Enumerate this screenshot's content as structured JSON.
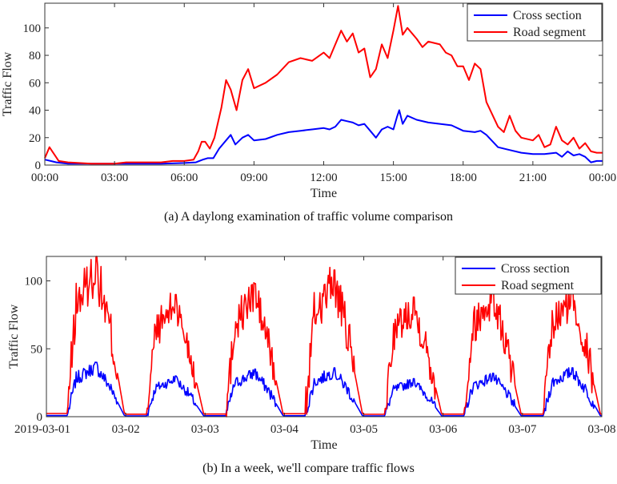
{
  "charts": [
    {
      "caption": "(a) A daylong examination of traffic volume comparison",
      "chart_data": {
        "type": "line",
        "xlabel": "Time",
        "ylabel": "Traffic Flow",
        "xlim": [
          0,
          24
        ],
        "ylim": [
          0,
          118
        ],
        "x_tick_values": [
          0,
          3,
          6,
          9,
          12,
          15,
          18,
          21,
          24
        ],
        "x_tick_labels": [
          "00:00",
          "03:00",
          "06:00",
          "09:00",
          "12:00",
          "15:00",
          "18:00",
          "21:00",
          "00:00"
        ],
        "y_ticks": [
          0,
          20,
          40,
          60,
          80,
          100
        ],
        "legend": "top-right",
        "grid": false,
        "series": [
          {
            "name": "Cross section",
            "color": "#0000ff",
            "points": [
              [
                0,
                4
              ],
              [
                0.25,
                3
              ],
              [
                0.5,
                2
              ],
              [
                1,
                1
              ],
              [
                2,
                1
              ],
              [
                3,
                1
              ],
              [
                4,
                1
              ],
              [
                5,
                1
              ],
              [
                6,
                1.5
              ],
              [
                6.5,
                2
              ],
              [
                6.8,
                4
              ],
              [
                7,
                5
              ],
              [
                7.25,
                5
              ],
              [
                7.5,
                12
              ],
              [
                7.8,
                18
              ],
              [
                8,
                22
              ],
              [
                8.2,
                15
              ],
              [
                8.5,
                20
              ],
              [
                8.75,
                22
              ],
              [
                9,
                18
              ],
              [
                9.5,
                19
              ],
              [
                10,
                22
              ],
              [
                10.5,
                24
              ],
              [
                11,
                25
              ],
              [
                11.5,
                26
              ],
              [
                12,
                27
              ],
              [
                12.25,
                26
              ],
              [
                12.5,
                28
              ],
              [
                12.75,
                33
              ],
              [
                13,
                32
              ],
              [
                13.25,
                31
              ],
              [
                13.5,
                29
              ],
              [
                13.75,
                30
              ],
              [
                14,
                25
              ],
              [
                14.25,
                20
              ],
              [
                14.5,
                26
              ],
              [
                14.75,
                28
              ],
              [
                15,
                26
              ],
              [
                15.15,
                35
              ],
              [
                15.25,
                40
              ],
              [
                15.4,
                30
              ],
              [
                15.6,
                36
              ],
              [
                16,
                33
              ],
              [
                16.5,
                31
              ],
              [
                17,
                30
              ],
              [
                17.5,
                29
              ],
              [
                18,
                25
              ],
              [
                18.5,
                24
              ],
              [
                18.75,
                25
              ],
              [
                19,
                22
              ],
              [
                19.5,
                13
              ],
              [
                20,
                11
              ],
              [
                20.5,
                9
              ],
              [
                21,
                8
              ],
              [
                21.5,
                8
              ],
              [
                22,
                9
              ],
              [
                22.25,
                6
              ],
              [
                22.5,
                10
              ],
              [
                22.75,
                7
              ],
              [
                23,
                8
              ],
              [
                23.25,
                6
              ],
              [
                23.5,
                2
              ],
              [
                23.75,
                3
              ],
              [
                24,
                3
              ]
            ]
          },
          {
            "name": "Road segment",
            "color": "#ff0000",
            "points": [
              [
                0,
                5
              ],
              [
                0.2,
                13
              ],
              [
                0.4,
                8
              ],
              [
                0.6,
                3
              ],
              [
                1,
                2
              ],
              [
                2,
                1
              ],
              [
                3,
                1
              ],
              [
                3.5,
                2
              ],
              [
                4,
                2
              ],
              [
                4.5,
                2
              ],
              [
                5,
                2
              ],
              [
                5.5,
                3
              ],
              [
                6,
                3
              ],
              [
                6.4,
                4
              ],
              [
                6.6,
                10
              ],
              [
                6.75,
                17
              ],
              [
                6.9,
                17
              ],
              [
                7.1,
                12
              ],
              [
                7.3,
                20
              ],
              [
                7.6,
                42
              ],
              [
                7.8,
                62
              ],
              [
                8,
                55
              ],
              [
                8.25,
                40
              ],
              [
                8.5,
                62
              ],
              [
                8.75,
                70
              ],
              [
                9,
                56
              ],
              [
                9.5,
                60
              ],
              [
                10,
                66
              ],
              [
                10.5,
                75
              ],
              [
                11,
                78
              ],
              [
                11.5,
                76
              ],
              [
                12,
                82
              ],
              [
                12.25,
                78
              ],
              [
                12.5,
                88
              ],
              [
                12.75,
                98
              ],
              [
                13,
                90
              ],
              [
                13.25,
                96
              ],
              [
                13.5,
                82
              ],
              [
                13.75,
                85
              ],
              [
                14,
                64
              ],
              [
                14.25,
                70
              ],
              [
                14.5,
                88
              ],
              [
                14.75,
                78
              ],
              [
                15,
                98
              ],
              [
                15.2,
                116
              ],
              [
                15.4,
                95
              ],
              [
                15.6,
                100
              ],
              [
                16,
                92
              ],
              [
                16.25,
                86
              ],
              [
                16.5,
                90
              ],
              [
                17,
                88
              ],
              [
                17.25,
                82
              ],
              [
                17.5,
                80
              ],
              [
                17.75,
                72
              ],
              [
                18,
                72
              ],
              [
                18.25,
                62
              ],
              [
                18.5,
                74
              ],
              [
                18.75,
                70
              ],
              [
                19,
                46
              ],
              [
                19.5,
                28
              ],
              [
                19.75,
                24
              ],
              [
                20,
                36
              ],
              [
                20.25,
                25
              ],
              [
                20.5,
                20
              ],
              [
                21,
                18
              ],
              [
                21.25,
                22
              ],
              [
                21.5,
                13
              ],
              [
                21.75,
                15
              ],
              [
                22,
                28
              ],
              [
                22.25,
                18
              ],
              [
                22.5,
                15
              ],
              [
                22.75,
                20
              ],
              [
                23,
                12
              ],
              [
                23.25,
                16
              ],
              [
                23.5,
                10
              ],
              [
                23.75,
                9
              ],
              [
                24,
                9
              ]
            ]
          }
        ]
      }
    },
    {
      "caption": "(b) In a week, we'll compare traffic flows",
      "chart_data": {
        "type": "line",
        "xlabel": "Time",
        "ylabel": "Traffic Flow",
        "xlim": [
          0,
          7
        ],
        "ylim": [
          0,
          118
        ],
        "x_tick_values": [
          0,
          1,
          2,
          3,
          4,
          5,
          6,
          7
        ],
        "x_tick_labels": [
          "2019-03-01",
          "03-02",
          "03-03",
          "03-04",
          "03-05",
          "03-06",
          "03-07",
          "03-08"
        ],
        "y_ticks": [
          0,
          50,
          100
        ],
        "legend": "top-right",
        "grid": false,
        "daily_peaks": [
          {
            "day": "2019-03-01",
            "road_segment": 118,
            "cross_section": 40
          },
          {
            "day": "03-02",
            "road_segment": 90,
            "cross_section": 30
          },
          {
            "day": "03-03",
            "road_segment": 98,
            "cross_section": 35
          },
          {
            "day": "03-04",
            "road_segment": 108,
            "cross_section": 36
          },
          {
            "day": "03-05",
            "road_segment": 88,
            "cross_section": 28
          },
          {
            "day": "03-06",
            "road_segment": 95,
            "cross_section": 32
          },
          {
            "day": "03-07",
            "road_segment": 95,
            "cross_section": 36
          }
        ],
        "series": [
          {
            "name": "Cross section",
            "color": "#0000ff"
          },
          {
            "name": "Road segment",
            "color": "#ff0000"
          }
        ]
      }
    }
  ]
}
